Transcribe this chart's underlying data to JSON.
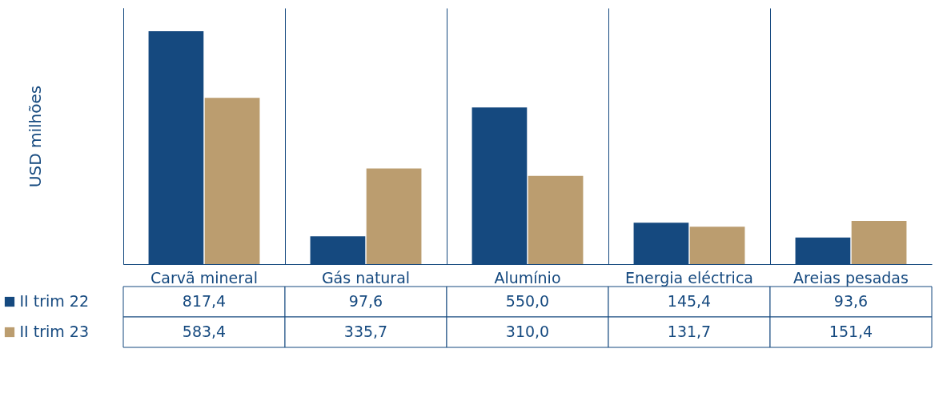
{
  "chart_data": {
    "type": "bar",
    "ylabel": "USD milhões",
    "categories": [
      "Carvã mineral",
      "Gás natural",
      "Alumínio",
      "Energia eléctrica",
      "Areias pesadas"
    ],
    "series": [
      {
        "name": "II trim 22",
        "color": "#15497f",
        "values": [
          817.4,
          97.6,
          550.0,
          145.4,
          93.6
        ],
        "value_labels": [
          "817,4",
          "97,6",
          "550,0",
          "145,4",
          "93,6"
        ]
      },
      {
        "name": "II trim 23",
        "color": "#bb9d6f",
        "values": [
          583.4,
          335.7,
          310.0,
          131.7,
          151.4
        ],
        "value_labels": [
          "583,4",
          "335,7",
          "310,0",
          "131,7",
          "151,4"
        ]
      }
    ],
    "legend": "bottom left",
    "grid": false
  }
}
